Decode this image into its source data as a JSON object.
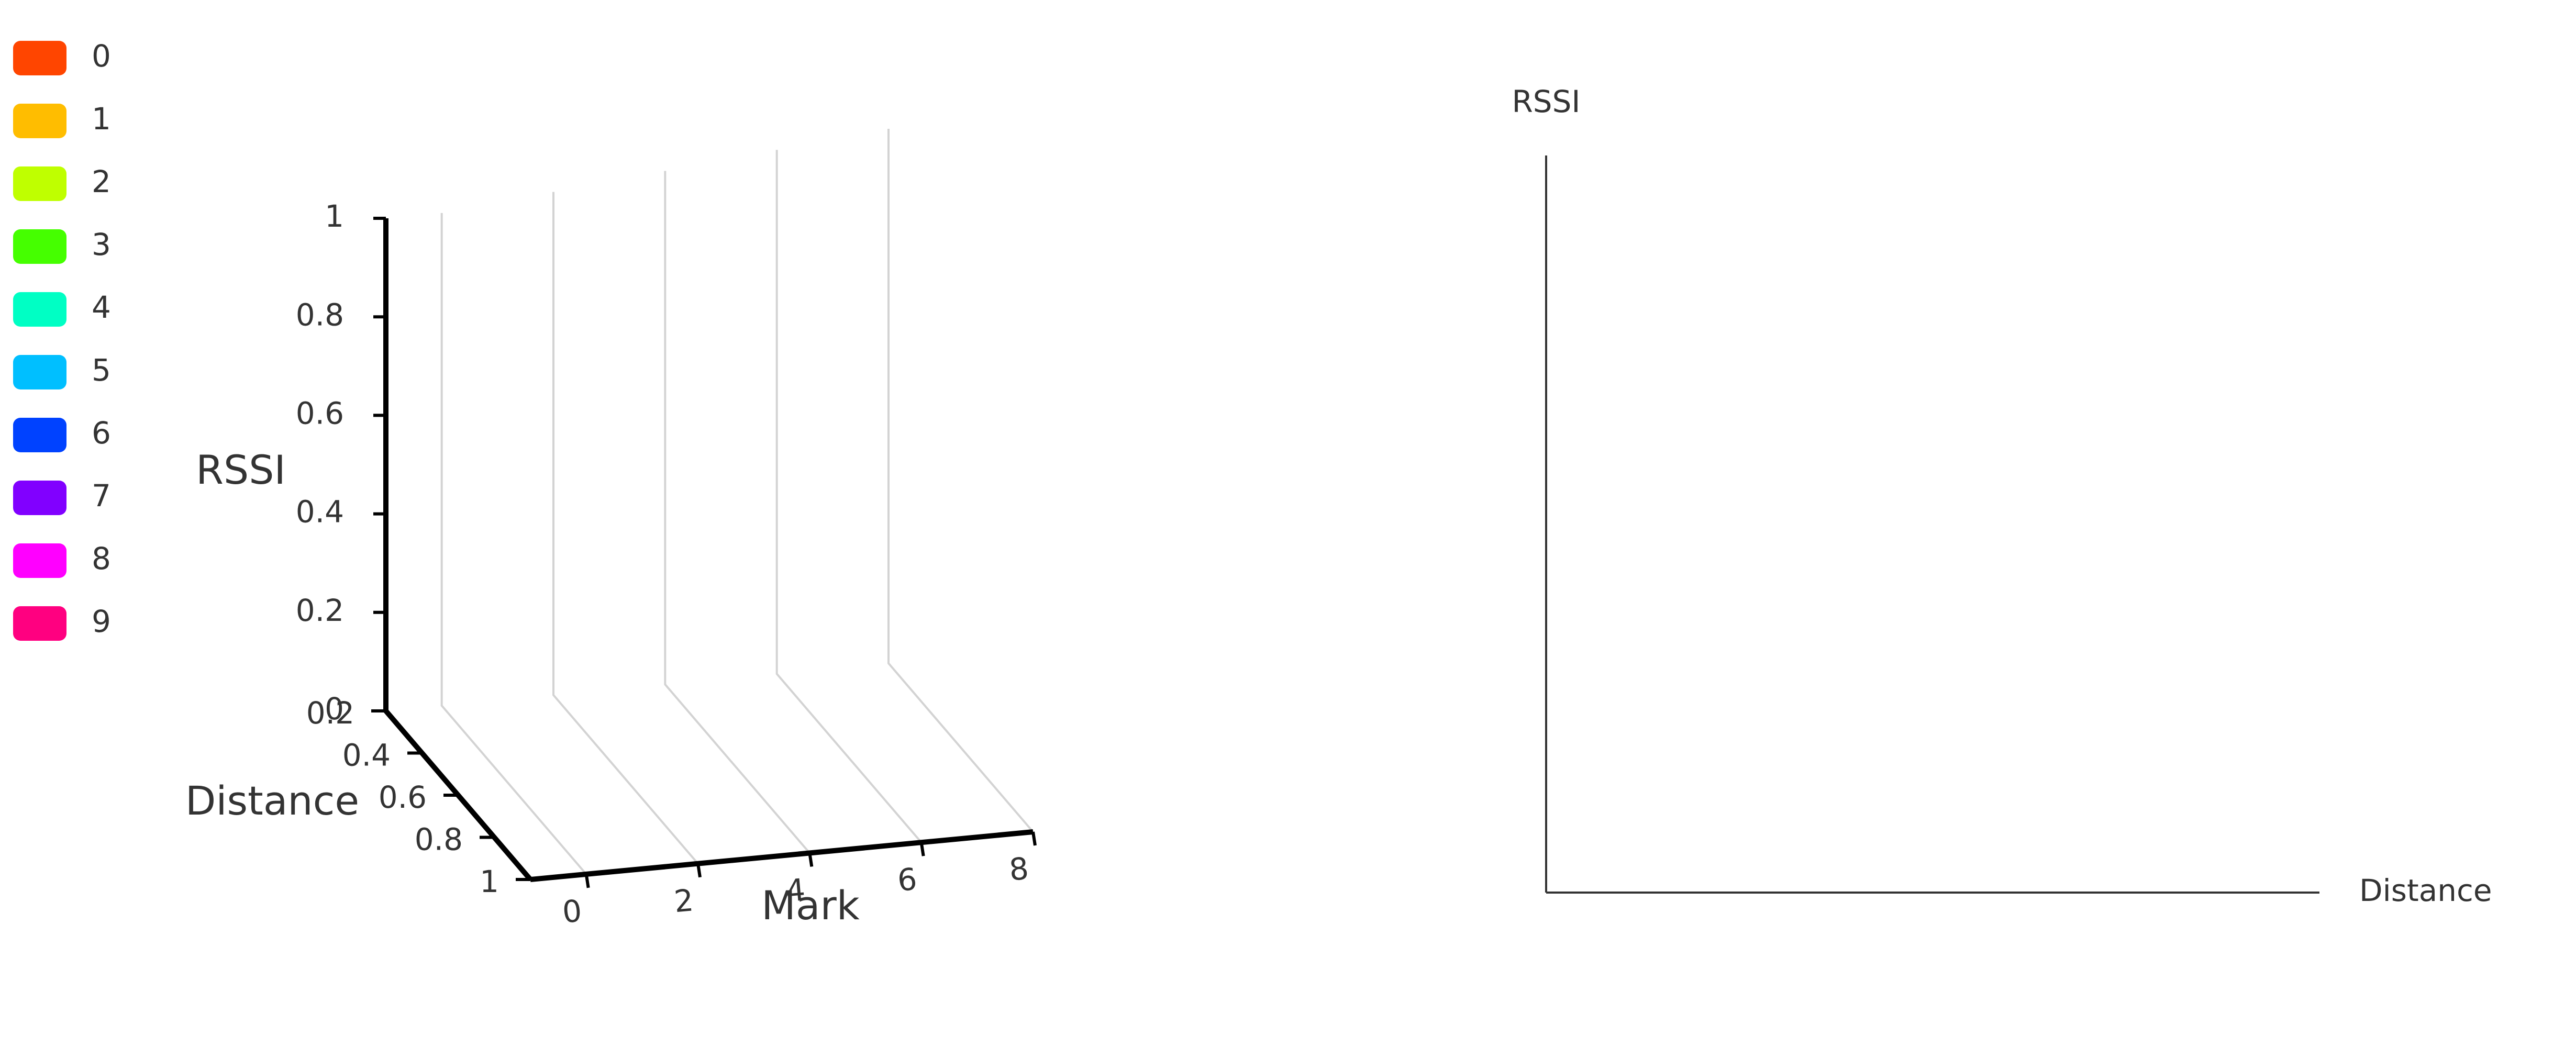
{
  "legend": {
    "items": [
      {
        "label": "0",
        "color": "#ff4500"
      },
      {
        "label": "1",
        "color": "#ffbd00"
      },
      {
        "label": "2",
        "color": "#bfff00"
      },
      {
        "label": "3",
        "color": "#45ff00"
      },
      {
        "label": "4",
        "color": "#00ffc4"
      },
      {
        "label": "5",
        "color": "#00bfff"
      },
      {
        "label": "6",
        "color": "#0042ff"
      },
      {
        "label": "7",
        "color": "#8100ff"
      },
      {
        "label": "8",
        "color": "#ff00ff"
      },
      {
        "label": "9",
        "color": "#ff0080"
      }
    ]
  },
  "chart_data": [
    {
      "type": "scatter",
      "projection": "3d",
      "series": [],
      "axes": {
        "x": {
          "label": "Mark",
          "range": [
            0,
            9
          ],
          "ticks": [
            "0",
            "2",
            "4",
            "6",
            "8"
          ]
        },
        "y": {
          "label": "Distance",
          "range": [
            0.2,
            1
          ],
          "ticks": [
            "0.2",
            "0.4",
            "0.6",
            "0.8",
            "1"
          ]
        },
        "z": {
          "label": "RSSI",
          "range": [
            0,
            1
          ],
          "ticks": [
            "0",
            "0.2",
            "0.4",
            "0.6",
            "0.8",
            "1"
          ]
        }
      },
      "grid": true
    },
    {
      "type": "scatter",
      "series": [],
      "xlabel": "Distance",
      "ylabel": "RSSI",
      "grid": false
    }
  ]
}
